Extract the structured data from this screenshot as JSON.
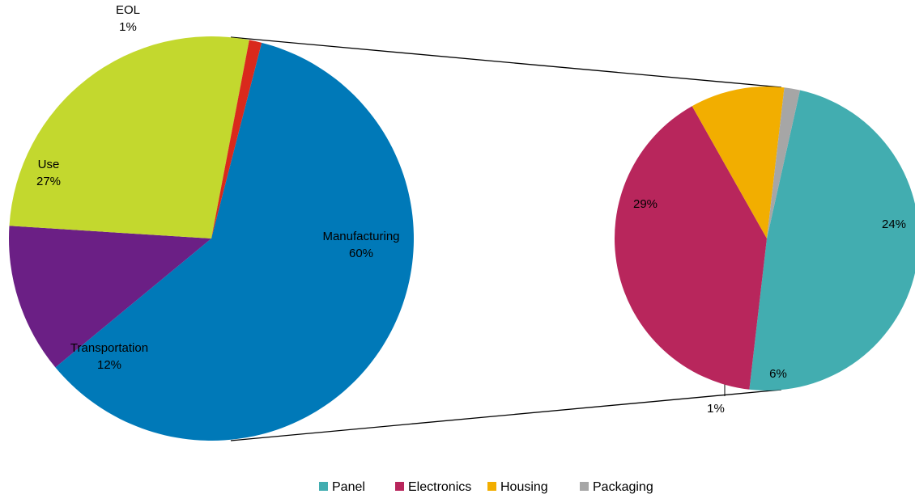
{
  "chart_data": [
    {
      "type": "pie",
      "categories": [
        "Manufacturing",
        "Transportation",
        "Use",
        "EOL"
      ],
      "values": [
        60,
        12,
        27,
        1
      ],
      "value_suffix": "%",
      "colors": [
        "#0079b8",
        "#6b1f85",
        "#c3d82e",
        "#d9291c"
      ]
    },
    {
      "type": "pie",
      "categories": [
        "Panel",
        "Electronics",
        "Housing",
        "Packaging"
      ],
      "values": [
        29,
        24,
        6,
        1
      ],
      "value_suffix": "%",
      "colors": [
        "#42adb0",
        "#b8265c",
        "#f2ae00",
        "#a6a6a6"
      ],
      "legend": {
        "position": "bottom",
        "entries": [
          "Panel",
          "Electronics",
          "Housing",
          "Packaging"
        ]
      }
    }
  ]
}
